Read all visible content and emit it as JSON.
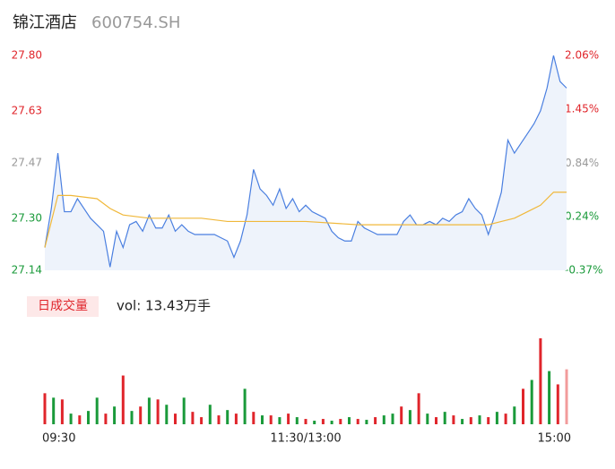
{
  "header": {
    "title": "锦江酒店",
    "code": "600754.SH"
  },
  "chart_data": [
    {
      "type": "line",
      "x": [
        0,
        3,
        6,
        9,
        12,
        15,
        18,
        21,
        24,
        27,
        30,
        33,
        36,
        39,
        42,
        45,
        48,
        51,
        54,
        57,
        60,
        63,
        66,
        69,
        72,
        75,
        78,
        81,
        84,
        87,
        90,
        93,
        96,
        99,
        102,
        105,
        108,
        111,
        114,
        117,
        120,
        123,
        126,
        129,
        132,
        135,
        138,
        141,
        144,
        147,
        150,
        153,
        156,
        159,
        162,
        165,
        168,
        171,
        174,
        177,
        180,
        183,
        186,
        189,
        192,
        195,
        198,
        201,
        204,
        207,
        210,
        213,
        216,
        219,
        222,
        225,
        228,
        231,
        234,
        237,
        240
      ],
      "series": [
        {
          "name": "price",
          "color": "#4a7fe0",
          "fill": "#eef3fb",
          "values": [
            27.21,
            27.33,
            27.5,
            27.32,
            27.32,
            27.36,
            27.33,
            27.3,
            27.28,
            27.26,
            27.15,
            27.26,
            27.21,
            27.28,
            27.29,
            27.26,
            27.31,
            27.27,
            27.27,
            27.31,
            27.26,
            27.28,
            27.26,
            27.25,
            27.25,
            27.25,
            27.25,
            27.24,
            27.23,
            27.18,
            27.23,
            27.31,
            27.45,
            27.39,
            27.37,
            27.34,
            27.39,
            27.33,
            27.36,
            27.32,
            27.34,
            27.32,
            27.31,
            27.3,
            27.26,
            27.24,
            27.23,
            27.23,
            27.29,
            27.27,
            27.26,
            27.25,
            27.25,
            27.25,
            27.25,
            27.29,
            27.31,
            27.28,
            27.28,
            27.29,
            27.28,
            27.3,
            27.29,
            27.31,
            27.32,
            27.36,
            27.33,
            27.31,
            27.25,
            27.31,
            27.38,
            27.54,
            27.5,
            27.53,
            27.56,
            27.59,
            27.63,
            27.7,
            27.8,
            27.72,
            27.7
          ]
        }
      ],
      "avg": {
        "name": "avg",
        "color": "#f0b83a",
        "x": [
          0,
          6,
          12,
          24,
          30,
          36,
          48,
          60,
          72,
          84,
          96,
          120,
          144,
          168,
          192,
          204,
          210,
          216,
          222,
          228,
          234,
          240
        ],
        "values": [
          27.21,
          27.37,
          27.37,
          27.36,
          27.33,
          27.31,
          27.3,
          27.3,
          27.3,
          27.29,
          27.29,
          27.29,
          27.28,
          27.28,
          27.28,
          27.28,
          27.29,
          27.3,
          27.32,
          27.34,
          27.38,
          27.38
        ]
      },
      "xlim": [
        0,
        240
      ],
      "xticks": [
        {
          "value": 0,
          "label": "09:30"
        },
        {
          "value": 120,
          "label": "11:30/13:00"
        },
        {
          "value": 240,
          "label": "15:00"
        }
      ],
      "ylim": [
        27.14,
        27.8
      ],
      "yticks": [
        {
          "value": 27.14,
          "label": "27.14"
        },
        {
          "value": 27.3,
          "label": "27.30"
        },
        {
          "value": 27.47,
          "label": "27.47"
        },
        {
          "value": 27.63,
          "label": "27.63"
        },
        {
          "value": 27.8,
          "label": "27.80"
        }
      ],
      "y2lim": [
        -0.37,
        2.06
      ],
      "y2ticks": [
        {
          "value": -0.37,
          "label": "-0.37%"
        },
        {
          "value": 0.24,
          "label": "0.24%"
        },
        {
          "value": 0.84,
          "label": "0.84%"
        },
        {
          "value": 1.45,
          "label": "1.45%"
        },
        {
          "value": 2.06,
          "label": "2.06%"
        }
      ],
      "tick_colors": [
        "#1a9a3a",
        "#1a9a3a",
        "#999999",
        "#e0252b",
        "#e0252b"
      ]
    },
    {
      "type": "volume",
      "legend": "日成交量",
      "summary": "vol: 13.43万手",
      "x": [
        0,
        4,
        8,
        12,
        16,
        20,
        24,
        28,
        32,
        36,
        40,
        44,
        48,
        52,
        56,
        60,
        64,
        68,
        72,
        76,
        80,
        84,
        88,
        92,
        96,
        100,
        104,
        108,
        112,
        116,
        120,
        124,
        128,
        132,
        136,
        140,
        144,
        148,
        152,
        156,
        160,
        164,
        168,
        172,
        176,
        180,
        184,
        188,
        192,
        196,
        200,
        204,
        208,
        212,
        216,
        220,
        224,
        228,
        232,
        236,
        240
      ],
      "values": [
        35,
        30,
        28,
        12,
        10,
        15,
        30,
        12,
        20,
        55,
        15,
        20,
        30,
        28,
        22,
        12,
        30,
        14,
        8,
        22,
        10,
        16,
        12,
        40,
        14,
        10,
        10,
        8,
        12,
        8,
        6,
        4,
        6,
        4,
        6,
        8,
        6,
        5,
        8,
        10,
        12,
        20,
        16,
        35,
        12,
        8,
        14,
        10,
        6,
        8,
        10,
        8,
        14,
        12,
        20,
        40,
        50,
        97,
        60,
        45,
        62
      ],
      "colors": [
        "#e0252b",
        "#1a9a3a",
        "#e0252b",
        "#1a9a3a",
        "#e0252b",
        "#1a9a3a",
        "#1a9a3a",
        "#e0252b",
        "#1a9a3a",
        "#e0252b",
        "#1a9a3a",
        "#e0252b",
        "#1a9a3a",
        "#e0252b",
        "#1a9a3a",
        "#e0252b",
        "#1a9a3a",
        "#e0252b",
        "#e0252b",
        "#1a9a3a",
        "#e0252b",
        "#1a9a3a",
        "#e0252b",
        "#1a9a3a",
        "#e0252b",
        "#1a9a3a",
        "#e0252b",
        "#1a9a3a",
        "#e0252b",
        "#1a9a3a",
        "#e0252b",
        "#1a9a3a",
        "#e0252b",
        "#1a9a3a",
        "#e0252b",
        "#1a9a3a",
        "#e0252b",
        "#1a9a3a",
        "#e0252b",
        "#1a9a3a",
        "#1a9a3a",
        "#e0252b",
        "#1a9a3a",
        "#e0252b",
        "#1a9a3a",
        "#e0252b",
        "#1a9a3a",
        "#e0252b",
        "#1a9a3a",
        "#e0252b",
        "#1a9a3a",
        "#e0252b",
        "#1a9a3a",
        "#e0252b",
        "#1a9a3a",
        "#e0252b",
        "#1a9a3a",
        "#e0252b",
        "#1a9a3a",
        "#e0252b",
        "#f29b9b"
      ],
      "ylim": [
        0,
        100
      ]
    }
  ]
}
